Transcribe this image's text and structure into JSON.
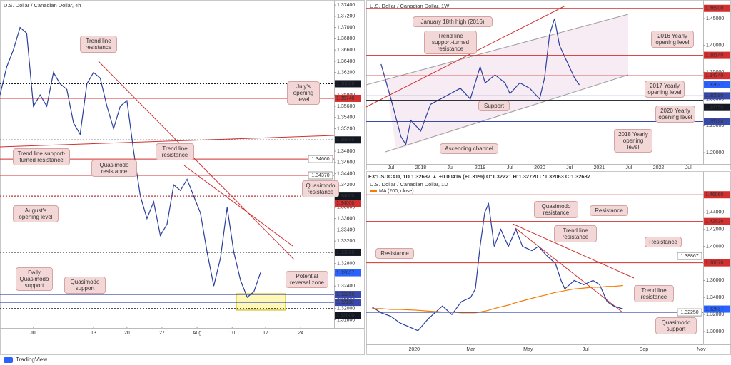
{
  "footer": "TradingView",
  "chart_data": [
    {
      "type": "line",
      "title": "U.S. Dollar / Canadian Dollar, 4h",
      "xlim": [
        0,
        100
      ],
      "xticks": [
        {
          "value": 10,
          "label": "Jul"
        },
        {
          "value": 28,
          "label": "13"
        },
        {
          "value": 38,
          "label": "20"
        },
        {
          "value": 48.5,
          "label": "27"
        },
        {
          "value": 59,
          "label": "Aug"
        },
        {
          "value": 69.5,
          "label": "10"
        },
        {
          "value": 79.5,
          "label": "17"
        },
        {
          "value": 90,
          "label": "24"
        }
      ],
      "ylim": [
        1.3168,
        1.3749
      ],
      "yticks": [
        {
          "value": 1.318,
          "label": "1.31800"
        },
        {
          "value": 1.32,
          "label": "1.32000"
        },
        {
          "value": 1.322,
          "label": "1.32200"
        },
        {
          "value": 1.324,
          "label": "1.32400"
        },
        {
          "value": 1.326,
          "label": "1.32600"
        },
        {
          "value": 1.328,
          "label": "1.32800"
        },
        {
          "value": 1.33,
          "label": "1.33000"
        },
        {
          "value": 1.332,
          "label": "1.33200"
        },
        {
          "value": 1.334,
          "label": "1.33400"
        },
        {
          "value": 1.336,
          "label": "1.33600"
        },
        {
          "value": 1.338,
          "label": "1.33800"
        },
        {
          "value": 1.34,
          "label": "1.34000"
        },
        {
          "value": 1.342,
          "label": "1.34200"
        },
        {
          "value": 1.344,
          "label": "1.34400"
        },
        {
          "value": 1.346,
          "label": "1.34600"
        },
        {
          "value": 1.348,
          "label": "1.34800"
        },
        {
          "value": 1.35,
          "label": "1.35000"
        },
        {
          "value": 1.352,
          "label": "1.35200"
        },
        {
          "value": 1.354,
          "label": "1.35400"
        },
        {
          "value": 1.356,
          "label": "1.35600"
        },
        {
          "value": 1.358,
          "label": "1.35800"
        },
        {
          "value": 1.36,
          "label": "1.36000"
        },
        {
          "value": 1.362,
          "label": "1.36200"
        },
        {
          "value": 1.364,
          "label": "1.36400"
        },
        {
          "value": 1.366,
          "label": "1.36600"
        },
        {
          "value": 1.368,
          "label": "1.36800"
        },
        {
          "value": 1.37,
          "label": "1.37000"
        },
        {
          "value": 1.372,
          "label": "1.37200"
        },
        {
          "value": 1.374,
          "label": "1.37400"
        }
      ],
      "x": [
        0,
        2,
        4,
        6,
        8,
        10,
        12,
        14,
        16,
        18,
        20,
        22,
        24,
        26,
        28,
        30,
        32,
        34,
        36,
        38,
        40,
        42,
        44,
        46,
        48,
        50,
        52,
        54,
        56,
        58,
        60,
        62,
        64,
        66,
        68,
        70,
        72,
        74,
        76,
        78
      ],
      "series": [
        {
          "color": "#2a3f9d",
          "values": [
            1.358,
            1.363,
            1.366,
            1.37,
            1.369,
            1.356,
            1.358,
            1.356,
            1.362,
            1.36,
            1.359,
            1.353,
            1.351,
            1.36,
            1.362,
            1.361,
            1.356,
            1.352,
            1.356,
            1.357,
            1.348,
            1.34,
            1.336,
            1.339,
            1.333,
            1.335,
            1.342,
            1.341,
            1.343,
            1.34,
            1.337,
            1.33,
            1.324,
            1.329,
            1.338,
            1.33,
            1.325,
            1.322,
            1.323,
            1.3264
          ]
        }
      ],
      "levels": [
        {
          "value": 1.36,
          "label": "1.36000",
          "color": "#131722",
          "style": "dotted",
          "tag": "axis"
        },
        {
          "value": 1.3574,
          "label": "1.35740",
          "color": "#d32f2f",
          "style": "solid",
          "tag": "axis"
        },
        {
          "value": 1.35,
          "label": "1.35000",
          "color": "#131722",
          "style": "dotted",
          "tag": "axis"
        },
        {
          "value": 1.3466,
          "label": "1.34660",
          "color": "#d32f2f",
          "style": "solid",
          "tag": "box"
        },
        {
          "value": 1.3437,
          "label": "1.34370",
          "color": "#d32f2f",
          "style": "solid",
          "tag": "box"
        },
        {
          "value": 1.34,
          "label": "1.34000",
          "color": "#131722",
          "style": "dotted",
          "tag": "axis"
        },
        {
          "value": 1.34,
          "label": "1.34000",
          "color": "#d32f2f",
          "style": "dotted",
          "tag": "axis"
        },
        {
          "value": 1.33,
          "label": "1.33000",
          "color": "#131722",
          "style": "dotted",
          "tag": "axis"
        },
        {
          "value": 1.32637,
          "label": "1.32637",
          "color": "#2962ff",
          "style": "none",
          "tag": "axis"
        },
        {
          "value": 1.3225,
          "label": "1.32250",
          "color": "#3949ab",
          "style": "solid",
          "tag": "axis"
        },
        {
          "value": 1.3211,
          "label": "1.32110",
          "color": "#3949ab",
          "style": "solid",
          "tag": "axis"
        },
        {
          "value": 1.32,
          "label": "1.32000",
          "color": "#131722",
          "style": "dotted",
          "tag": "axis"
        }
      ],
      "annotations": [
        "Trend line resistance",
        "July's opening level",
        "Trend line support-turned resistance",
        "Quasimodo resistance",
        "Trend line resistance",
        "Quasimodo resistance",
        "August's opening level",
        "Daily Quasimodo support",
        "Quasimodo support",
        "Potential reversal zone"
      ]
    },
    {
      "type": "line",
      "title": "U.S. Dollar / Canadian Dollar, 1W",
      "xlim": [
        1,
        69
      ],
      "xticks": [
        {
          "value": 6,
          "label": "Jul"
        },
        {
          "value": 12,
          "label": "2018"
        },
        {
          "value": 18,
          "label": "Jul"
        },
        {
          "value": 24,
          "label": "2019"
        },
        {
          "value": 30,
          "label": "Jul"
        },
        {
          "value": 36,
          "label": "2020"
        },
        {
          "value": 42,
          "label": "Jul"
        },
        {
          "value": 48,
          "label": "2021"
        },
        {
          "value": 54,
          "label": "Jul"
        },
        {
          "value": 60,
          "label": "2022"
        },
        {
          "value": 66,
          "label": "Jul"
        }
      ],
      "ylim": [
        1.1787,
        1.4793
      ],
      "yticks": [
        {
          "value": 1.2,
          "label": "1.20000"
        },
        {
          "value": 1.25,
          "label": "1.25000"
        },
        {
          "value": 1.3,
          "label": "1.30000"
        },
        {
          "value": 1.35,
          "label": "1.35000"
        },
        {
          "value": 1.4,
          "label": "1.40000"
        },
        {
          "value": 1.45,
          "label": "1.45000"
        }
      ],
      "x": [
        4,
        6,
        8,
        9,
        10,
        12,
        14,
        16,
        18,
        20,
        22,
        24,
        25,
        27,
        29,
        30,
        32,
        34,
        36,
        37,
        38,
        39,
        40,
        41,
        42,
        43,
        44
      ],
      "series": [
        {
          "color": "#2a3f9d",
          "values": [
            1.365,
            1.3,
            1.23,
            1.215,
            1.26,
            1.24,
            1.29,
            1.3,
            1.31,
            1.32,
            1.3,
            1.36,
            1.33,
            1.345,
            1.33,
            1.31,
            1.33,
            1.32,
            1.3,
            1.34,
            1.42,
            1.45,
            1.4,
            1.38,
            1.36,
            1.34,
            1.3264
          ]
        }
      ],
      "levels": [
        {
          "value": 1.469,
          "label": "1.46900",
          "color": "#d32f2f",
          "style": "solid",
          "tag": "axis"
        },
        {
          "value": 1.3814,
          "label": "1.38140",
          "color": "#d32f2f",
          "style": "solid",
          "tag": "axis"
        },
        {
          "value": 1.3434,
          "label": "1.34340",
          "color": "#d32f2f",
          "style": "solid",
          "tag": "axis"
        },
        {
          "value": 1.32637,
          "label": "1.32637",
          "color": "#2962ff",
          "style": "none",
          "tag": "axis"
        },
        {
          "value": 1.3059,
          "label": "1.30590",
          "color": "#3949ab",
          "style": "solid",
          "tag": "axis"
        },
        {
          "value": 1.2975,
          "label": "1.29750",
          "color": "#131722",
          "style": "solid",
          "tag": "axis"
        },
        {
          "value": 1.2579,
          "label": "1.25790",
          "color": "#3949ab",
          "style": "solid",
          "tag": "axis"
        }
      ],
      "annotations": [
        "January 18th high (2016)",
        "Trend line support-turned resistance",
        "2016 Yearly opening level",
        "2017 Yearly opening level",
        "Support",
        "2020 Yearly opening level",
        "2018 Yearly opening level",
        "Ascending channel"
      ]
    },
    {
      "type": "line",
      "title": "U.S. Dollar / Canadian Dollar, 1D",
      "header": "FX:USDCAD, 1D  1.32637 ▲ +0.00416 (+0.31%)  O:1.32221  H:1.32720  L:1.32063  C:1.32637",
      "xlim": [
        -51,
        307
      ],
      "xticks": [
        {
          "value": 0,
          "label": "2020"
        },
        {
          "value": 60,
          "label": "Mar"
        },
        {
          "value": 121,
          "label": "May"
        },
        {
          "value": 182,
          "label": "Jul"
        },
        {
          "value": 244,
          "label": "Sep"
        },
        {
          "value": 305,
          "label": "Nov"
        }
      ],
      "ylim": [
        1.2858,
        1.47
      ],
      "yticks": [
        {
          "value": 1.3,
          "label": "1.30000"
        },
        {
          "value": 1.32,
          "label": "1.32000"
        },
        {
          "value": 1.34,
          "label": "1.34000"
        },
        {
          "value": 1.36,
          "label": "1.36000"
        },
        {
          "value": 1.38,
          "label": "1.38000"
        },
        {
          "value": 1.4,
          "label": "1.40000"
        },
        {
          "value": 1.42,
          "label": "1.42000"
        },
        {
          "value": 1.44,
          "label": "1.44000"
        },
        {
          "value": 1.46,
          "label": "1.46000"
        }
      ],
      "x": [
        -45,
        -35,
        -25,
        -15,
        4,
        15,
        30,
        40,
        50,
        60,
        65,
        70,
        75,
        79,
        85,
        92,
        100,
        108,
        115,
        125,
        132,
        140,
        150,
        156,
        160,
        170,
        180,
        190,
        197,
        205,
        212,
        222
      ],
      "series": [
        {
          "color": "#2a3f9d",
          "values": [
            1.329,
            1.322,
            1.318,
            1.31,
            1.301,
            1.315,
            1.33,
            1.32,
            1.335,
            1.34,
            1.35,
            1.4,
            1.44,
            1.45,
            1.4,
            1.42,
            1.4,
            1.42,
            1.4,
            1.395,
            1.4,
            1.39,
            1.38,
            1.36,
            1.35,
            1.36,
            1.355,
            1.36,
            1.355,
            1.335,
            1.33,
            1.3264
          ]
        },
        {
          "name": "MA (200, close)",
          "color": "#f57c00",
          "values": [
            1.327,
            1.327,
            1.326,
            1.326,
            1.325,
            1.324,
            1.323,
            1.323,
            1.322,
            1.322,
            1.322,
            1.323,
            1.324,
            1.325,
            1.327,
            1.329,
            1.331,
            1.334,
            1.336,
            1.339,
            1.341,
            1.343,
            1.346,
            1.347,
            1.348,
            1.35,
            1.351,
            1.352,
            1.352,
            1.353,
            1.353,
            1.354
          ]
        }
      ],
      "levels": [
        {
          "value": 1.4606,
          "label": "1.46060",
          "color": "#d32f2f",
          "style": "solid",
          "tag": "axis"
        },
        {
          "value": 1.42926,
          "label": "1.42926",
          "color": "#d32f2f",
          "style": "solid",
          "tag": "axis"
        },
        {
          "value": 1.38867,
          "label": "1.38867",
          "color": "#d32f2f",
          "style": "none",
          "tag": "box"
        },
        {
          "value": 1.3807,
          "label": "1.38070",
          "color": "#d32f2f",
          "style": "solid",
          "tag": "axis"
        },
        {
          "value": 1.32637,
          "label": "1.32637",
          "color": "#2962ff",
          "style": "none",
          "tag": "axis"
        },
        {
          "value": 1.3225,
          "label": "1.32250",
          "color": "#3949ab",
          "style": "solid",
          "tag": "box"
        }
      ],
      "annotations": [
        "Quasimodo resistance",
        "Resistance",
        "Trend line resistance",
        "Resistance",
        "Resistance",
        "Trend line resistance",
        "Quasimodo support"
      ]
    }
  ]
}
